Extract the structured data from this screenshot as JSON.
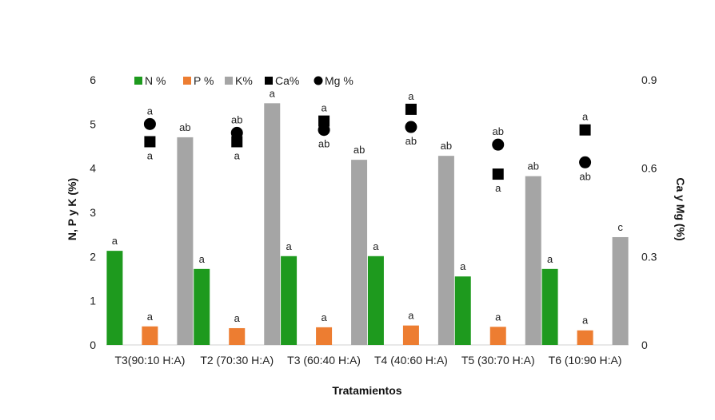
{
  "chart_data": {
    "type": "bar",
    "xlabel": "Tratamientos",
    "ylabel": "N, P y K (%)",
    "y2label": "Ca y Mg (%)",
    "ylim": [
      0,
      6
    ],
    "y2lim": [
      0,
      0.9
    ],
    "yticks": [
      "0",
      "1",
      "2",
      "3",
      "4",
      "5",
      "6"
    ],
    "y2ticks": [
      "0",
      "0.3",
      "0.6",
      "0.9"
    ],
    "categories": [
      "T3(90:10 H:A)",
      "T2 (70:30 H:A)",
      "T3 (60:40 H:A)",
      "T4 (40:60 H:A)",
      "T5 (30:70 H:A)",
      "T6 (10:90 H:A)"
    ],
    "legend": [
      "N %",
      "P %",
      "K%",
      "Ca%",
      "Mg %"
    ],
    "series": [
      {
        "name": "N %",
        "kind": "bar",
        "axis": "left",
        "color": "#1e9a1e",
        "values": [
          2.13,
          1.72,
          2.01,
          2.01,
          1.55,
          1.72
        ],
        "labels": [
          "a",
          "a",
          "a",
          "a",
          "a",
          "a"
        ]
      },
      {
        "name": "P %",
        "kind": "bar",
        "axis": "left",
        "color": "#ed7d31",
        "values": [
          0.42,
          0.38,
          0.4,
          0.44,
          0.41,
          0.33
        ],
        "labels": [
          "a",
          "a",
          "a",
          "a",
          "a",
          "a"
        ]
      },
      {
        "name": "K%",
        "kind": "bar",
        "axis": "left",
        "color": "#a5a5a5",
        "values": [
          4.7,
          5.47,
          4.19,
          4.28,
          3.82,
          2.44
        ],
        "labels": [
          "ab",
          "a",
          "ab",
          "ab",
          "ab",
          "c"
        ]
      },
      {
        "name": "Ca%",
        "kind": "square",
        "axis": "right",
        "color": "#000000",
        "values": [
          0.69,
          0.69,
          0.76,
          0.8,
          0.58,
          0.73
        ],
        "labels": [
          "a",
          "a",
          "a",
          "a",
          "a",
          "a"
        ]
      },
      {
        "name": "Mg %",
        "kind": "circle",
        "axis": "right",
        "color": "#000000",
        "values": [
          0.75,
          0.72,
          0.73,
          0.74,
          0.68,
          0.62
        ],
        "labels": [
          "a",
          "ab",
          "ab",
          "ab",
          "ab",
          "ab"
        ]
      }
    ]
  }
}
